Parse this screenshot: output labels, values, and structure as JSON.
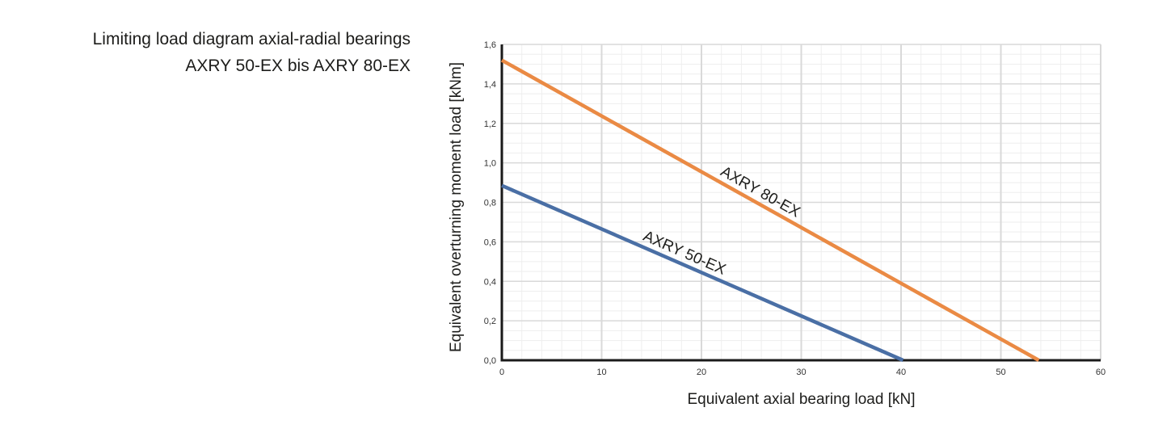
{
  "title": {
    "line1": "Limiting load diagram axial-radial bearings",
    "line2": "AXRY 50-EX bis AXRY 80-EX"
  },
  "chart_data": {
    "type": "line",
    "title": "Limiting load diagram axial-radial bearings AXRY 50-EX bis AXRY 80-EX",
    "xlabel": "Equivalent axial bearing load [kN]",
    "ylabel": "Equivalent overturning moment load [kNm]",
    "xlim": [
      0,
      60
    ],
    "ylim": [
      0,
      1.6
    ],
    "x_ticks": [
      0,
      10,
      20,
      30,
      40,
      50,
      60
    ],
    "x_tick_labels": [
      "0",
      "10",
      "20",
      "30",
      "40",
      "50",
      "60"
    ],
    "y_ticks": [
      0,
      0.2,
      0.4,
      0.6,
      0.8,
      1.0,
      1.2,
      1.4,
      1.6
    ],
    "y_tick_labels": [
      "0,0",
      "0,2",
      "0,4",
      "0,6",
      "0,8",
      "1,0",
      "1,2",
      "1,4",
      "1,6"
    ],
    "grid": true,
    "legend": "inline labels on lines",
    "series": [
      {
        "name": "AXRY 50-EX",
        "color": "#4a6fa5",
        "x": [
          0,
          40.2
        ],
        "y": [
          0.885,
          0
        ]
      },
      {
        "name": "AXRY 80-EX",
        "color": "#ea8a44",
        "x": [
          0,
          53.8
        ],
        "y": [
          1.52,
          0
        ]
      }
    ],
    "annotations": [
      {
        "text": "AXRY 80-EX",
        "series": 1,
        "at_x": 21.5
      },
      {
        "text": "AXRY 50-EX",
        "series": 0,
        "at_x": 13.8
      }
    ]
  }
}
